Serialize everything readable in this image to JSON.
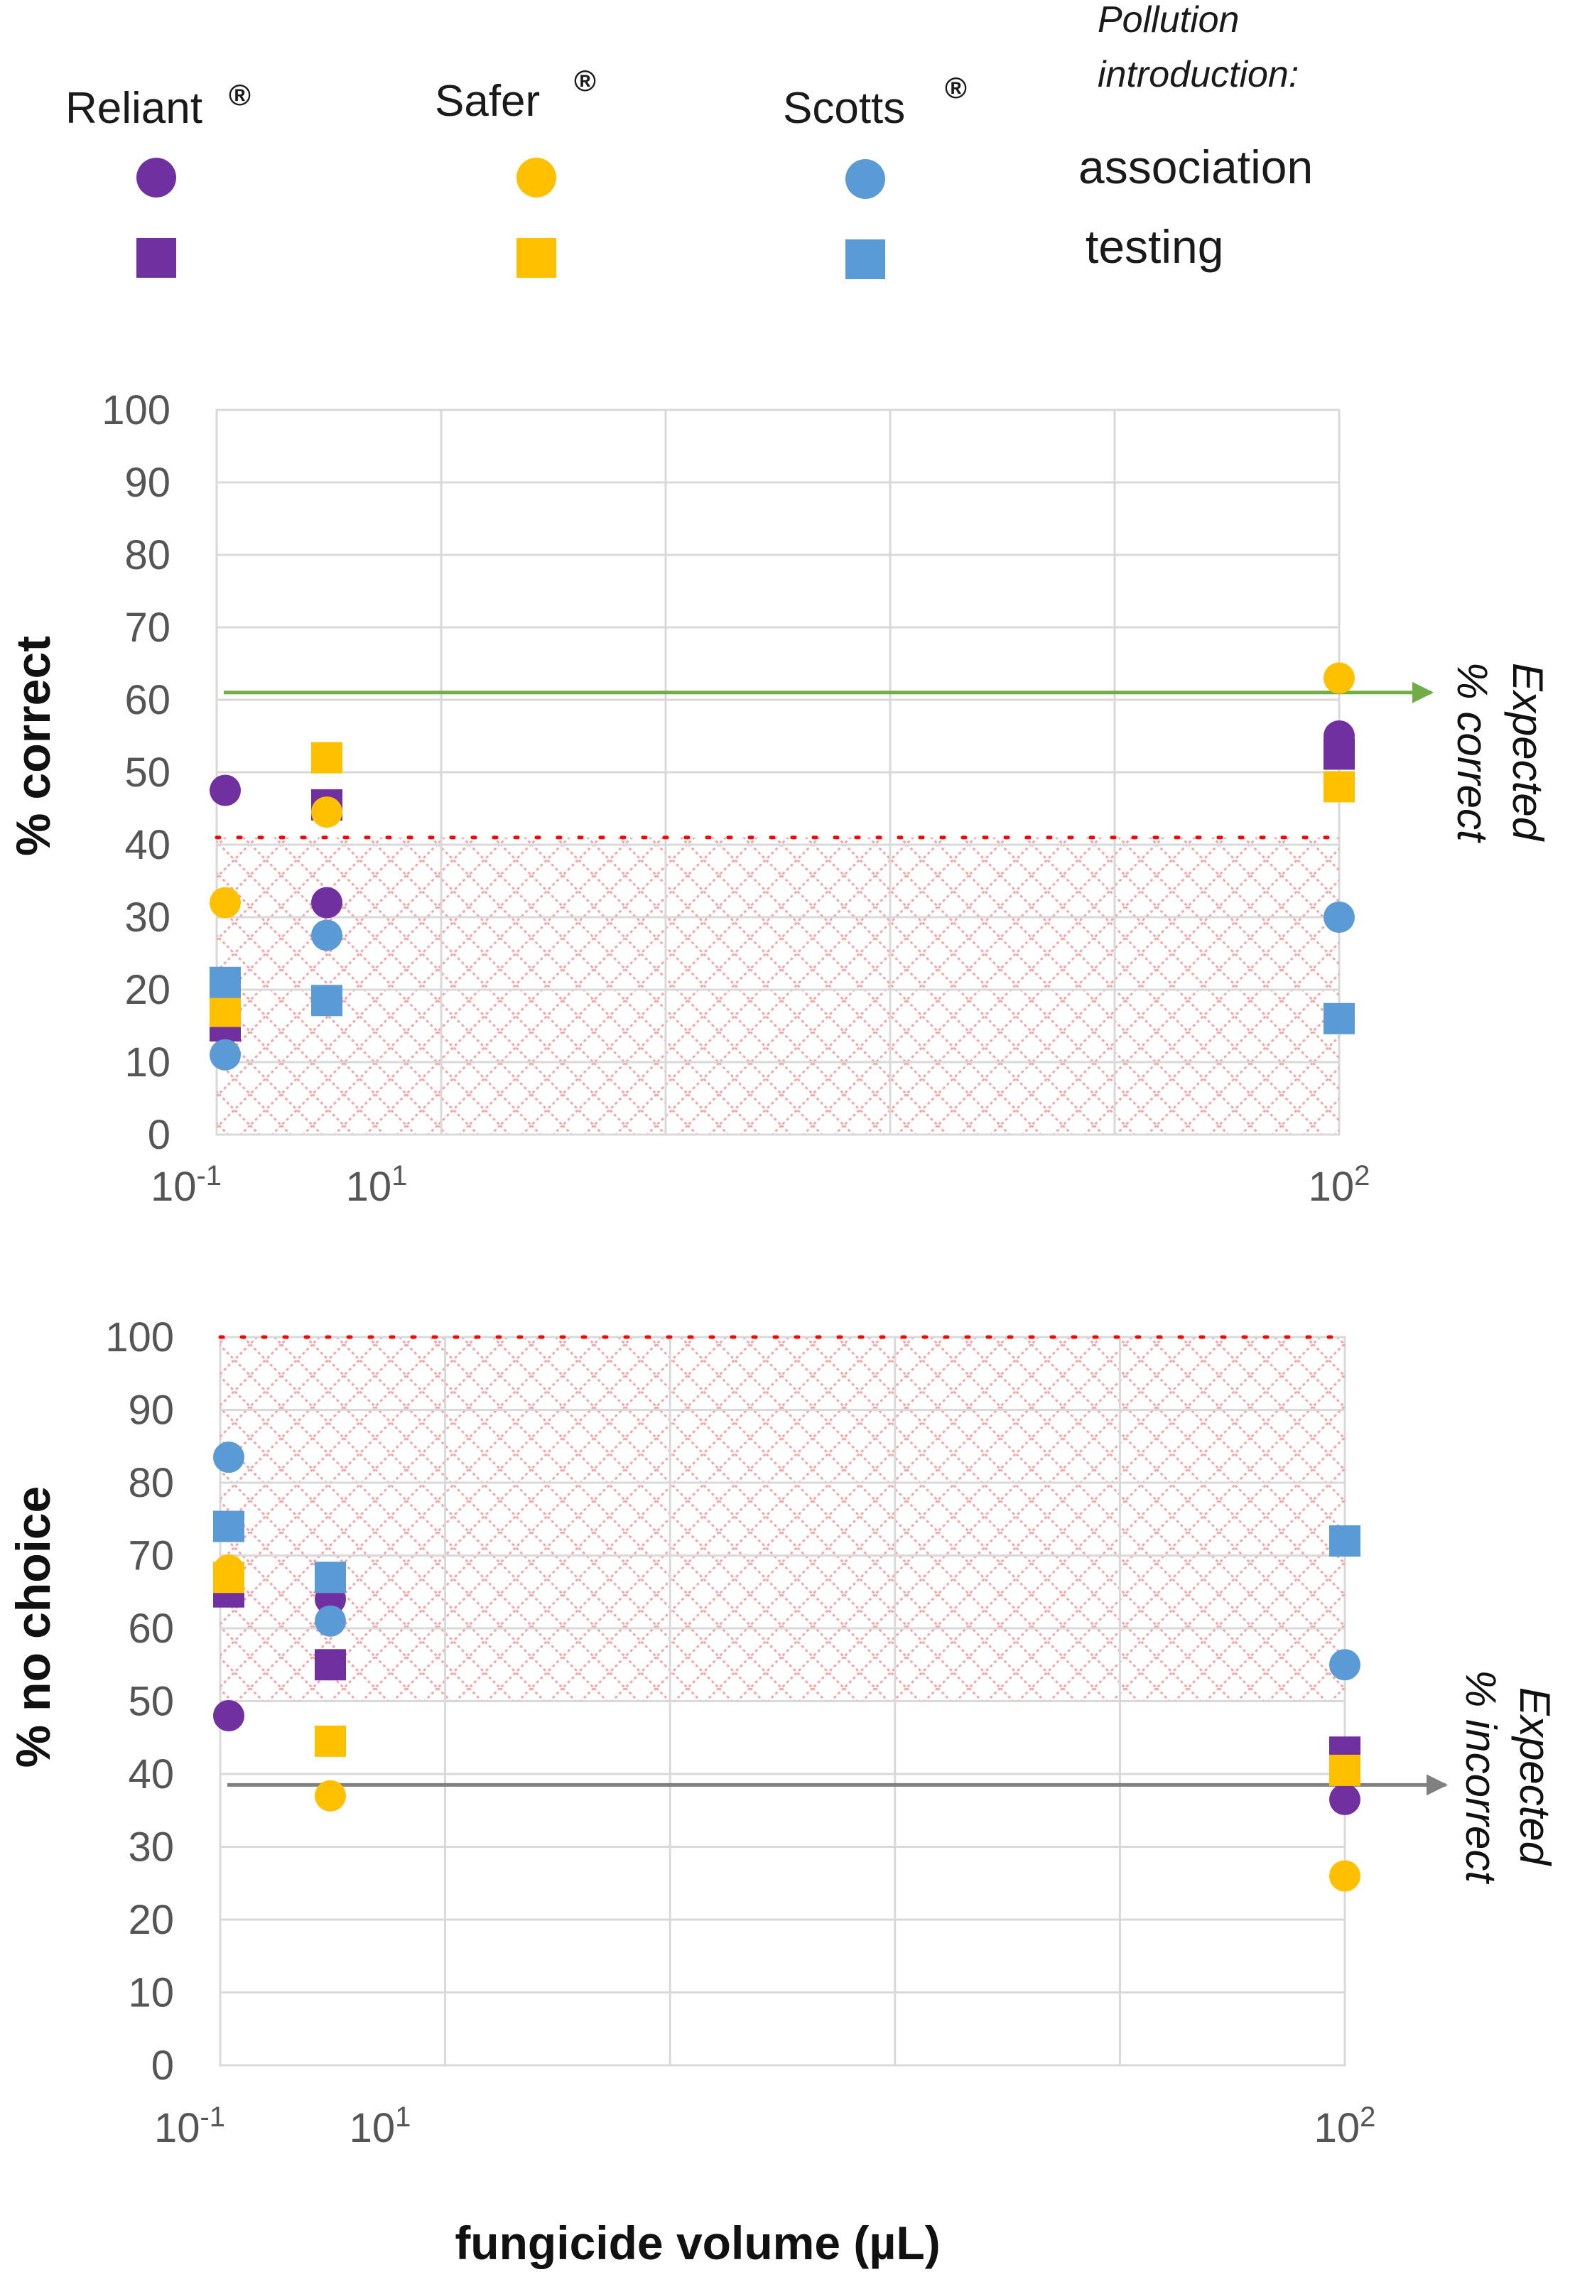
{
  "colors": {
    "Reliant": "#7030a0",
    "Safer": "#ffc000",
    "Scotts": "#5b9bd5",
    "expected_correct_line": "#70ad47",
    "expected_incorrect_line": "#808080",
    "threshold": "#ff0000",
    "hatch": "#f4a6a6",
    "grid": "#d9d9d9"
  },
  "legend": {
    "brands": [
      {
        "name": "Reliant",
        "mark": "®"
      },
      {
        "name": "Safer",
        "mark": "®"
      },
      {
        "name": "Scotts",
        "mark": "®"
      }
    ],
    "heading_line1": "Pollution",
    "heading_line2": "introduction:",
    "rows": [
      {
        "label": "association",
        "shape": "circle"
      },
      {
        "label": "testing",
        "shape": "square"
      }
    ]
  },
  "chart_data": [
    {
      "type": "scatter",
      "title": "",
      "xlabel": "",
      "ylabel": "% correct",
      "ylim": [
        0,
        100
      ],
      "yticks": [
        0,
        10,
        20,
        30,
        40,
        50,
        60,
        70,
        80,
        90,
        100
      ],
      "xticks": [
        {
          "base": "10",
          "exp": "-1"
        },
        {
          "base": "10",
          "exp": "1"
        },
        {
          "base": "10",
          "exp": "2"
        }
      ],
      "x_categories": [
        "10^-1",
        "10^1",
        "10^2"
      ],
      "shaded_region": [
        0,
        41
      ],
      "threshold_line": 41,
      "expected_line": {
        "value": 61,
        "line1": "Expected",
        "line2": "% correct"
      },
      "series": [
        {
          "brand": "Reliant",
          "phase": "association",
          "shape": "circle",
          "values": [
            47.5,
            32,
            55
          ]
        },
        {
          "brand": "Reliant",
          "phase": "testing",
          "shape": "square",
          "values": [
            15,
            45.5,
            52.5
          ]
        },
        {
          "brand": "Safer",
          "phase": "association",
          "shape": "circle",
          "values": [
            32,
            44.5,
            63
          ]
        },
        {
          "brand": "Safer",
          "phase": "testing",
          "shape": "square",
          "values": [
            17,
            52,
            48
          ]
        },
        {
          "brand": "Scotts",
          "phase": "association",
          "shape": "circle",
          "values": [
            11,
            27.5,
            30
          ]
        },
        {
          "brand": "Scotts",
          "phase": "testing",
          "shape": "square",
          "values": [
            21,
            18.5,
            16
          ]
        }
      ]
    },
    {
      "type": "scatter",
      "title": "",
      "xlabel": "fungicide volume (µL)",
      "ylabel": "% no choice",
      "ylim": [
        0,
        100
      ],
      "yticks": [
        0,
        10,
        20,
        30,
        40,
        50,
        60,
        70,
        80,
        90,
        100
      ],
      "xticks": [
        {
          "base": "10",
          "exp": "-1"
        },
        {
          "base": "10",
          "exp": "1"
        },
        {
          "base": "10",
          "exp": "2"
        }
      ],
      "x_categories": [
        "10^-1",
        "10^1",
        "10^2"
      ],
      "shaded_region": [
        50,
        100
      ],
      "threshold_line": 100,
      "expected_line": {
        "value": 38.5,
        "line1": "Expected",
        "line2": "% incorrect"
      },
      "series": [
        {
          "brand": "Reliant",
          "phase": "association",
          "shape": "circle",
          "values": [
            48,
            64,
            36.5
          ]
        },
        {
          "brand": "Reliant",
          "phase": "testing",
          "shape": "square",
          "values": [
            65,
            55,
            43
          ]
        },
        {
          "brand": "Safer",
          "phase": "association",
          "shape": "circle",
          "values": [
            68,
            37,
            26
          ]
        },
        {
          "brand": "Safer",
          "phase": "testing",
          "shape": "square",
          "values": [
            67,
            44.5,
            40.5
          ]
        },
        {
          "brand": "Scotts",
          "phase": "association",
          "shape": "circle",
          "values": [
            83.5,
            61,
            55
          ]
        },
        {
          "brand": "Scotts",
          "phase": "testing",
          "shape": "square",
          "values": [
            74,
            67,
            72
          ]
        }
      ]
    }
  ]
}
